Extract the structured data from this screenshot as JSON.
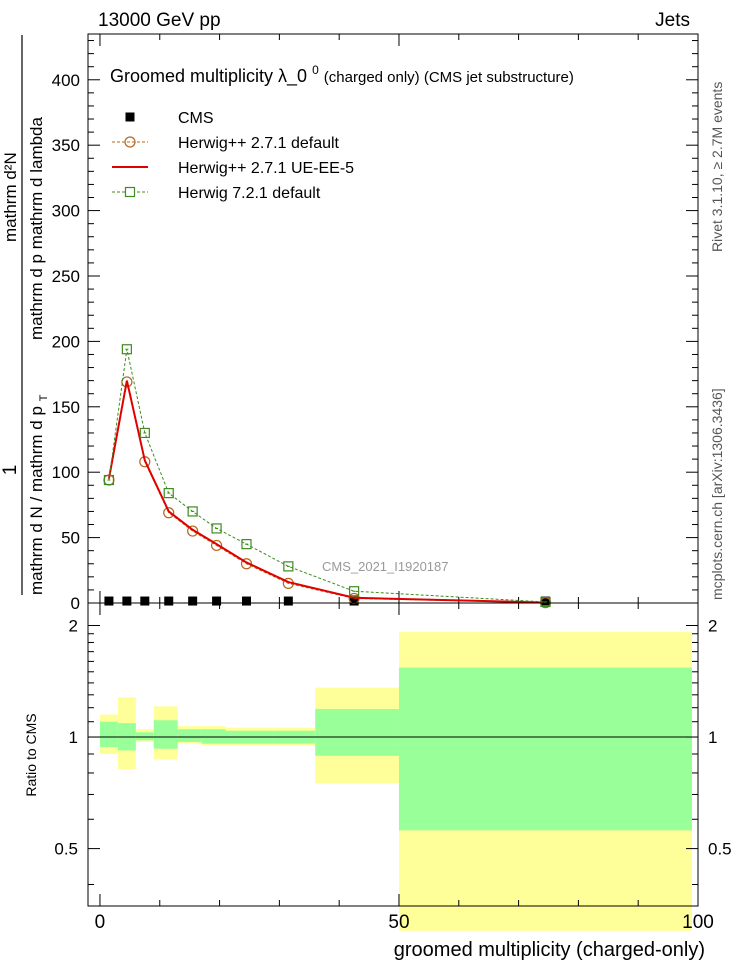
{
  "header": {
    "left": "13000 GeV pp",
    "right": "Jets"
  },
  "side_labels": {
    "rivet": "Rivet 3.1.10, ≥ 2.7M events",
    "mcplots": "mcplots.cern.ch [arXiv:1306.3436]"
  },
  "chart_data": {
    "type": "line",
    "title": "Groomed multiplicity  λ_0⁰ (charged only) (CMS jet substructure)",
    "title_main": "Groomed multiplicity  λ_0",
    "title_sup": "0",
    "title_rest": " (charged only) (CMS jet substructure)",
    "analysis_label": "CMS_2021_I1920187",
    "xlabel": "groomed multiplicity (charged-only)",
    "ylabel": {
      "numerator": "1",
      "denominator": "mathrm d N / mathrm d p",
      "t_sub": "T",
      "d2n": "mathrm d²N",
      "d2n_denom": "mathrm d p  mathrm d lambda"
    },
    "ratio_ylabel": "Ratio to CMS",
    "xlim": [
      -2,
      100
    ],
    "ylim": [
      0,
      435
    ],
    "ratio_ylim": [
      0.35,
      2.3
    ],
    "x_ticks": [
      0,
      50,
      100
    ],
    "y_ticks": [
      0,
      50,
      100,
      150,
      200,
      250,
      300,
      350,
      400
    ],
    "ratio_ticks": [
      0.5,
      1,
      2
    ],
    "bins": [
      [
        0,
        3
      ],
      [
        3,
        6
      ],
      [
        6,
        9
      ],
      [
        9,
        13
      ],
      [
        13,
        17
      ],
      [
        17,
        21
      ],
      [
        21,
        29
      ],
      [
        29,
        36
      ],
      [
        36,
        50
      ],
      [
        50,
        99
      ]
    ],
    "x": [
      1.5,
      4.5,
      7.5,
      11.5,
      15.5,
      19.5,
      24.5,
      31.5,
      42.5,
      74.5
    ],
    "series": [
      {
        "name": "CMS",
        "style": "data",
        "color": "#000000",
        "values": [
          1.5,
          1.5,
          1.5,
          1.5,
          1.5,
          1.5,
          1.5,
          1.5,
          1.5,
          1.5
        ]
      },
      {
        "name": "Herwig++ 2.7.1 default",
        "style": "circle-dashed",
        "color": "#b8651c",
        "values": [
          94,
          169,
          108,
          69,
          55,
          44,
          30,
          15,
          3.5,
          0.3
        ]
      },
      {
        "name": "Herwig++ 2.7.1 UE-EE-5",
        "style": "solid",
        "color": "#e00000",
        "values": [
          95,
          170,
          109,
          70,
          56,
          45,
          31,
          16,
          4,
          0.3
        ]
      },
      {
        "name": "Herwig 7.2.1 default",
        "style": "square-dashed",
        "color": "#3d8c1d",
        "values": [
          94,
          194,
          130,
          84,
          70,
          57,
          45,
          28,
          9,
          0.8
        ]
      }
    ],
    "ratio_bands": {
      "stat": [
        [
          0.94,
          1.1
        ],
        [
          0.92,
          1.09
        ],
        [
          0.98,
          1.03
        ],
        [
          0.93,
          1.11
        ],
        [
          0.97,
          1.05
        ],
        [
          0.96,
          1.05
        ],
        [
          0.96,
          1.04
        ],
        [
          0.96,
          1.04
        ],
        [
          0.89,
          1.19
        ],
        [
          0.56,
          1.54
        ]
      ],
      "total": [
        [
          0.9,
          1.15
        ],
        [
          0.82,
          1.28
        ],
        [
          0.97,
          1.05
        ],
        [
          0.87,
          1.21
        ],
        [
          0.96,
          1.07
        ],
        [
          0.95,
          1.07
        ],
        [
          0.95,
          1.06
        ],
        [
          0.95,
          1.06
        ],
        [
          0.75,
          1.36
        ],
        [
          0.3,
          1.92
        ]
      ]
    },
    "colors": {
      "stat_band": "#99ff99",
      "total_band": "#ffff99",
      "analysis_label": "#999999",
      "side_labels": "#555555"
    },
    "legend_position": "top-left",
    "grid": false
  }
}
